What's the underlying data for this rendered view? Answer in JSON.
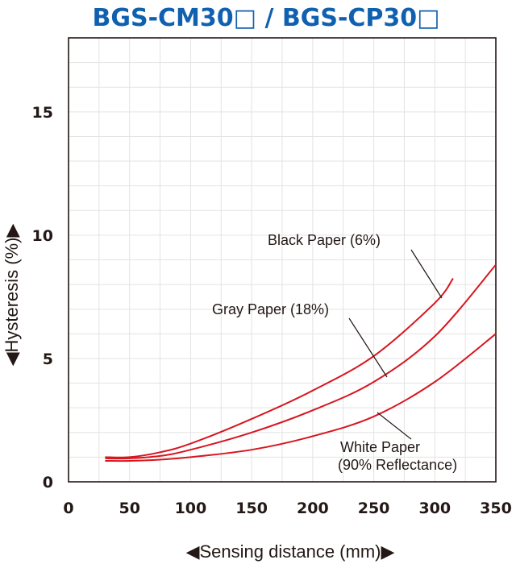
{
  "chart_data": {
    "type": "line",
    "title": "BGS-CM30□ / BGS-CP30□",
    "xlabel": "◀Sensing distance (mm)▶",
    "ylabel": "◀Hysteresis (%)▶",
    "xlim": [
      0,
      350
    ],
    "ylim": [
      0,
      18
    ],
    "xticks": [
      0,
      50,
      100,
      150,
      200,
      250,
      300,
      350
    ],
    "yticks": [
      0,
      5,
      10,
      15
    ],
    "grid": true,
    "series": [
      {
        "label": "Black Paper (6%)",
        "x": [
          30,
          50,
          75,
          100,
          150,
          200,
          250,
          300,
          315
        ],
        "y": [
          1.0,
          1.0,
          1.2,
          1.55,
          2.55,
          3.7,
          5.1,
          7.25,
          8.25
        ]
      },
      {
        "label": "Gray Paper (18%)",
        "x": [
          30,
          50,
          75,
          100,
          150,
          200,
          250,
          300,
          350
        ],
        "y": [
          0.95,
          0.95,
          1.05,
          1.3,
          2.0,
          2.9,
          4.05,
          5.9,
          8.8
        ]
      },
      {
        "label_lines": [
          "White Paper",
          "(90% Reflectance)"
        ],
        "x": [
          30,
          50,
          75,
          100,
          150,
          200,
          250,
          300,
          350
        ],
        "y": [
          0.85,
          0.85,
          0.9,
          1.0,
          1.3,
          1.85,
          2.65,
          4.05,
          6.0
        ]
      }
    ]
  }
}
